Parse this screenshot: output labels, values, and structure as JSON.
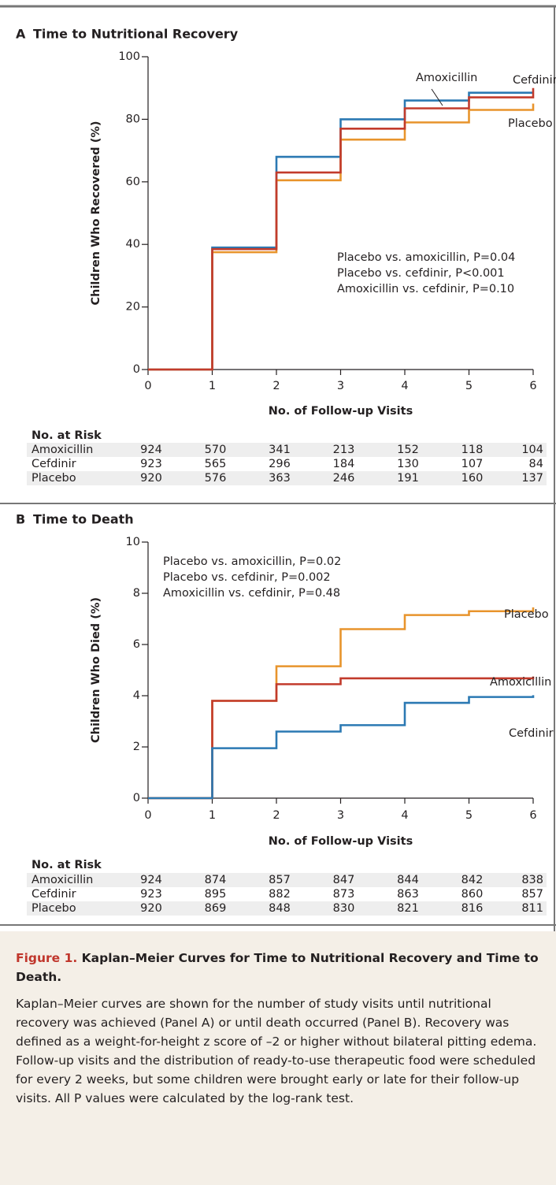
{
  "chart_data": [
    {
      "type": "step",
      "panel": "A",
      "title": "Time to Nutritional Recovery",
      "x_label": "No. of Follow-up Visits",
      "y_label": "Children Who Recovered (%)",
      "x": [
        0,
        1,
        2,
        3,
        4,
        5,
        6
      ],
      "xlim": [
        0,
        6
      ],
      "xticks": [
        0,
        1,
        2,
        3,
        4,
        5,
        6
      ],
      "ylim": [
        0,
        100
      ],
      "yticks": [
        0,
        20,
        40,
        60,
        80,
        100
      ],
      "series": [
        {
          "name": "Cefdinir",
          "color": "#2b79b3",
          "values": [
            0,
            39,
            68,
            80,
            86,
            88.5,
            88.5
          ]
        },
        {
          "name": "Placebo",
          "color": "#e8942c",
          "values": [
            0,
            37.5,
            60.5,
            73.5,
            79,
            83,
            85
          ]
        },
        {
          "name": "Amoxicillin",
          "color": "#c23b2c",
          "values": [
            0,
            38.5,
            63,
            77,
            83.5,
            87,
            90
          ]
        }
      ],
      "annotations": [
        "Placebo vs. amoxicillin, P=0.04",
        "Placebo vs. cefdinir, P<0.001",
        "Amoxicillin vs. cefdinir, P=0.10"
      ],
      "risk_table": {
        "title": "No. at Risk",
        "rows": [
          {
            "name": "Amoxicillin",
            "values": [
              924,
              570,
              341,
              213,
              152,
              118,
              104
            ]
          },
          {
            "name": "Cefdinir",
            "values": [
              923,
              565,
              296,
              184,
              130,
              107,
              84
            ]
          },
          {
            "name": "Placebo",
            "values": [
              920,
              576,
              363,
              246,
              191,
              160,
              137
            ]
          }
        ]
      }
    },
    {
      "type": "step",
      "panel": "B",
      "title": "Time to Death",
      "x_label": "No. of Follow-up Visits",
      "y_label": "Children Who Died (%)",
      "x": [
        0,
        1,
        2,
        3,
        4,
        5,
        6
      ],
      "xlim": [
        0,
        6
      ],
      "xticks": [
        0,
        1,
        2,
        3,
        4,
        5,
        6
      ],
      "ylim": [
        0,
        10
      ],
      "yticks": [
        0,
        2,
        4,
        6,
        8,
        10
      ],
      "series": [
        {
          "name": "Placebo",
          "color": "#e8942c",
          "values": [
            0,
            3.8,
            5.15,
            6.6,
            7.15,
            7.3,
            7.45
          ]
        },
        {
          "name": "Amoxicillin",
          "color": "#c23b2c",
          "values": [
            0,
            3.8,
            4.45,
            4.68,
            4.68,
            4.68,
            4.75
          ]
        },
        {
          "name": "Cefdinir",
          "color": "#2b79b3",
          "values": [
            0,
            1.95,
            2.6,
            2.85,
            3.72,
            3.95,
            4.02
          ]
        }
      ],
      "annotations": [
        "Placebo vs. amoxicillin, P=0.02",
        "Placebo vs. cefdinir, P=0.002",
        "Amoxicillin vs. cefdinir, P=0.48"
      ],
      "risk_table": {
        "title": "No. at Risk",
        "rows": [
          {
            "name": "Amoxicillin",
            "values": [
              924,
              874,
              857,
              847,
              844,
              842,
              838
            ]
          },
          {
            "name": "Cefdinir",
            "values": [
              923,
              895,
              882,
              873,
              863,
              860,
              857
            ]
          },
          {
            "name": "Placebo",
            "values": [
              920,
              869,
              848,
              830,
              821,
              816,
              811
            ]
          }
        ]
      }
    }
  ],
  "caption": {
    "label": "Figure 1.",
    "title": "Kaplan–Meier Curves for Time to Nutritional Recovery and Time to Death.",
    "text": "Kaplan–Meier curves are shown for the number of study visits until nutritional recovery was achieved (Panel A) or until death occurred (Panel B). Recovery was defined as a weight-for-height z score of –2 or higher without bilateral pitting edema. Follow-up visits and the distribution of ready-to-use therapeutic food were scheduled for every 2 weeks, but some children were brought early or late for their follow-up visits. All P values were calculated by the log-rank test."
  }
}
